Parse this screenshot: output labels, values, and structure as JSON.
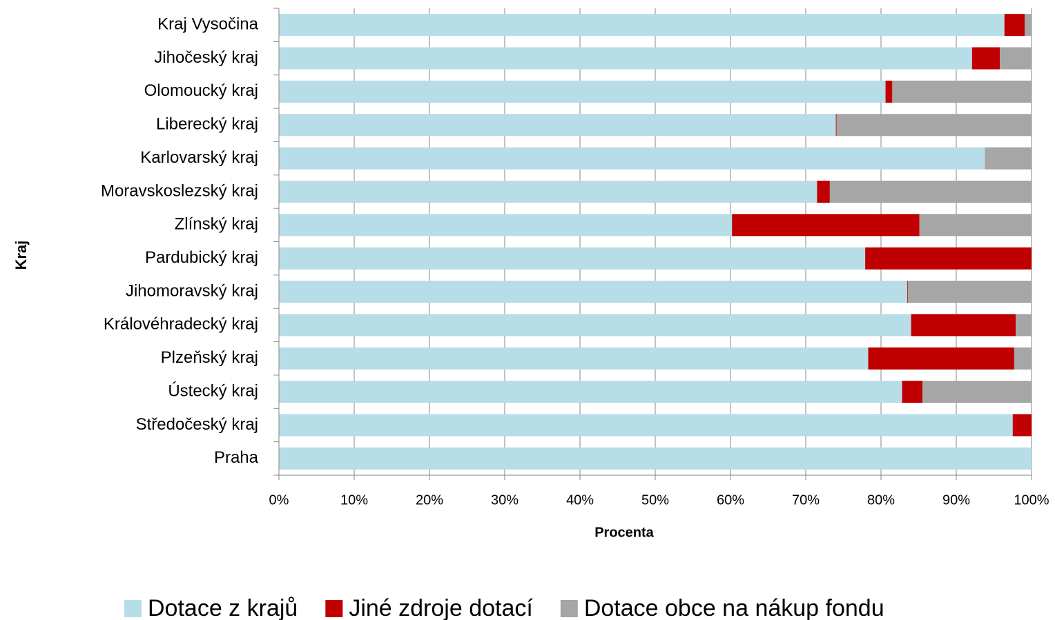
{
  "chart_data": {
    "type": "stacked-barh",
    "xlabel": "Procenta",
    "ylabel": "Kraj",
    "categories": [
      "Kraj Vysočina",
      "Jihočeský kraj",
      "Olomoucký kraj",
      "Liberecký kraj",
      "Karlovarský kraj",
      "Moravskoslezský kraj",
      "Zlínský kraj",
      "Pardubický kraj",
      "Jihomoravský kraj",
      "Královéhradecký kraj",
      "Plzeňský kraj",
      "Ústecký kraj",
      "Středočeský kraj",
      "Praha"
    ],
    "series": [
      {
        "name": "Dotace z krajů",
        "color": "#b7dde8",
        "values": [
          96.4,
          92.1,
          80.6,
          74.0,
          93.8,
          71.5,
          60.2,
          77.9,
          83.5,
          84.0,
          78.3,
          82.8,
          97.5,
          100
        ]
      },
      {
        "name": "Jiné zdroje dotací",
        "color": "#c00000",
        "values": [
          2.7,
          3.7,
          0.9,
          0.1,
          0,
          1.7,
          24.9,
          22.1,
          0.1,
          13.9,
          19.4,
          2.7,
          2.5,
          0
        ]
      },
      {
        "name": "Dotace obce na nákup fondu",
        "color": "#a6a6a6",
        "values": [
          0.9,
          4.2,
          18.5,
          25.9,
          6.2,
          26.8,
          14.9,
          0,
          16.4,
          2.1,
          2.3,
          14.5,
          0,
          0
        ]
      }
    ],
    "xlim": [
      0,
      100
    ],
    "xticks": [
      {
        "value": 0,
        "label": "0%"
      },
      {
        "value": 10,
        "label": "10%"
      },
      {
        "value": 20,
        "label": "20%"
      },
      {
        "value": 30,
        "label": "30%"
      },
      {
        "value": 40,
        "label": "40%"
      },
      {
        "value": 50,
        "label": "50%"
      },
      {
        "value": 60,
        "label": "60%"
      },
      {
        "value": 70,
        "label": "70%"
      },
      {
        "value": 80,
        "label": "80%"
      },
      {
        "value": 90,
        "label": "90%"
      },
      {
        "value": 100,
        "label": "100%"
      }
    ],
    "grid": true,
    "legend": "bottom"
  }
}
